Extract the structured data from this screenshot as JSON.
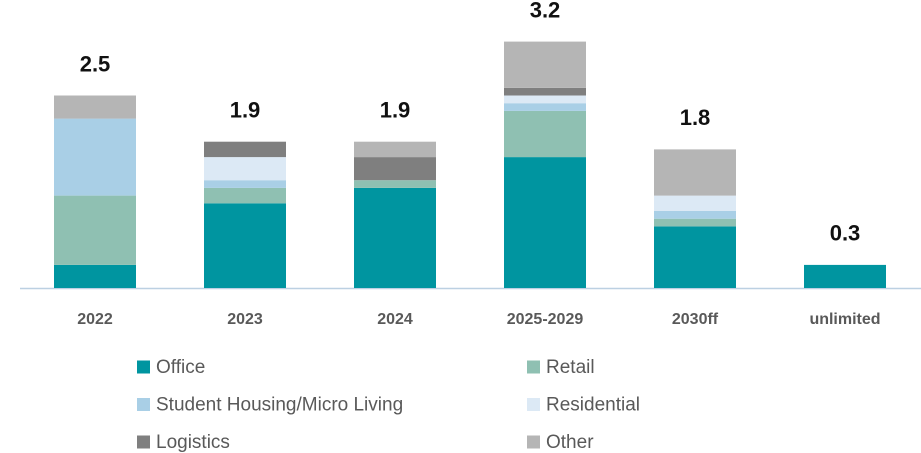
{
  "chart_data": {
    "type": "stacked_bar",
    "categories": [
      "2022",
      "2023",
      "2024",
      "2025-2029",
      "2030ff",
      "unlimited"
    ],
    "totals": [
      2.5,
      1.9,
      1.9,
      3.2,
      1.8,
      0.3
    ],
    "series": [
      {
        "name": "Office",
        "color": "#0095a0",
        "values": [
          0.3,
          1.1,
          1.3,
          1.7,
          0.8,
          0.3
        ]
      },
      {
        "name": "Retail",
        "color": "#8fc0b2",
        "values": [
          0.9,
          0.2,
          0.1,
          0.6,
          0.1,
          null
        ]
      },
      {
        "name": "Student Housing/Micro Living",
        "color": "#a9cfe6",
        "values": [
          1.0,
          0.1,
          null,
          0.1,
          0.1,
          null
        ]
      },
      {
        "name": "Residential",
        "color": "#dce9f5",
        "values": [
          null,
          0.3,
          null,
          0.1,
          0.2,
          null
        ]
      },
      {
        "name": "Logistics",
        "color": "#7f7f7f",
        "values": [
          null,
          0.2,
          0.3,
          0.1,
          null,
          null
        ]
      },
      {
        "name": "Other",
        "color": "#b5b5b5",
        "values": [
          0.3,
          null,
          0.2,
          0.6,
          0.6,
          null
        ]
      }
    ]
  }
}
